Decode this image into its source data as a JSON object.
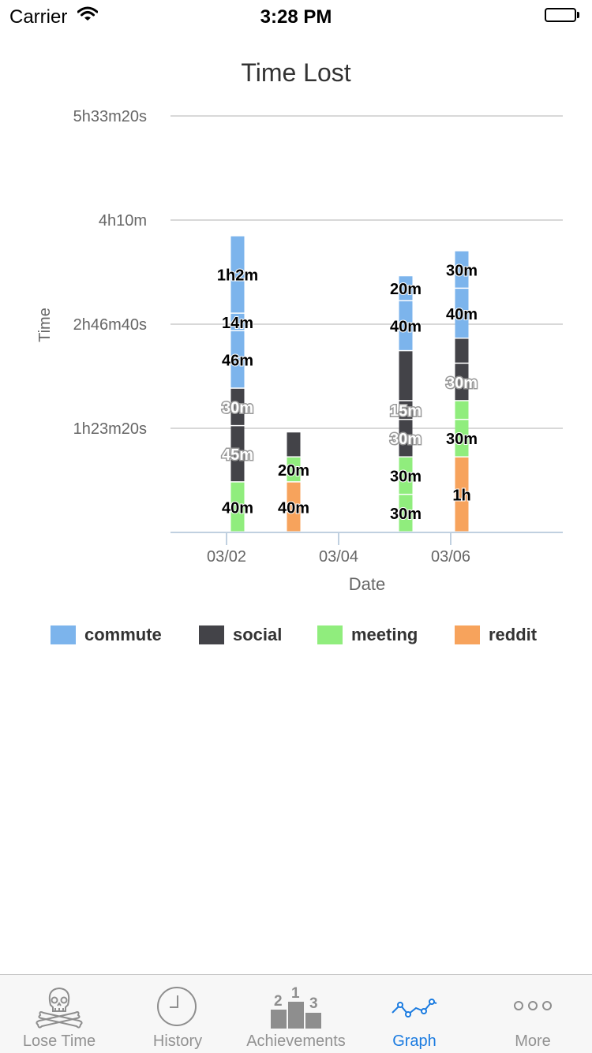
{
  "status_bar": {
    "carrier": "Carrier",
    "time": "3:28 PM"
  },
  "chart_data": {
    "type": "bar",
    "stacked": true,
    "title": "Time Lost",
    "xlabel": "Date",
    "ylabel": "Time",
    "ylim": [
      0,
      20000
    ],
    "y_ticks": [
      {
        "value": 5000,
        "label": "1h23m20s"
      },
      {
        "value": 10000,
        "label": "2h46m40s"
      },
      {
        "value": 15000,
        "label": "4h10m"
      },
      {
        "value": 20000,
        "label": "5h33m20s"
      }
    ],
    "x_ticks": [
      {
        "date": "2015-03-02",
        "label": "03/02"
      },
      {
        "date": "2015-03-04",
        "label": "03/04"
      },
      {
        "date": "2015-03-06",
        "label": "03/06"
      }
    ],
    "x_range": [
      "2015-03-01",
      "2015-03-08"
    ],
    "grid": true,
    "legend_position": "bottom",
    "series": [
      {
        "name": "commute",
        "color": "#7cb4ec"
      },
      {
        "name": "social",
        "color": "#434348"
      },
      {
        "name": "meeting",
        "color": "#90ed7d"
      },
      {
        "name": "reddit",
        "color": "#f7a35c"
      }
    ],
    "bars": [
      {
        "date": "2015-03-02",
        "segments": [
          {
            "series": "meeting",
            "value": 2400,
            "label": "40m"
          },
          {
            "series": "social",
            "value": 2700,
            "label": "45m"
          },
          {
            "series": "social",
            "value": 1800,
            "label": "30m"
          },
          {
            "series": "commute",
            "value": 2760,
            "label": "46m"
          },
          {
            "series": "commute",
            "value": 840,
            "label": "14m"
          },
          {
            "series": "commute",
            "value": 3720,
            "label": "1h2m"
          }
        ]
      },
      {
        "date": "2015-03-03",
        "segments": [
          {
            "series": "reddit",
            "value": 2400,
            "label": "40m"
          },
          {
            "series": "meeting",
            "value": 1200,
            "label": "20m"
          },
          {
            "series": "social",
            "value": 1200,
            "label": ""
          }
        ]
      },
      {
        "date": "2015-03-05",
        "segments": [
          {
            "series": "meeting",
            "value": 1800,
            "label": "30m"
          },
          {
            "series": "meeting",
            "value": 1800,
            "label": "30m"
          },
          {
            "series": "social",
            "value": 1800,
            "label": "30m"
          },
          {
            "series": "social",
            "value": 900,
            "label": "15m"
          },
          {
            "series": "social",
            "value": 2400,
            "label": ""
          },
          {
            "series": "commute",
            "value": 2400,
            "label": "40m"
          },
          {
            "series": "commute",
            "value": 1200,
            "label": "20m"
          }
        ]
      },
      {
        "date": "2015-03-06",
        "segments": [
          {
            "series": "reddit",
            "value": 3600,
            "label": "1h"
          },
          {
            "series": "meeting",
            "value": 1800,
            "label": "30m"
          },
          {
            "series": "meeting",
            "value": 900,
            "label": ""
          },
          {
            "series": "social",
            "value": 1800,
            "label": "30m"
          },
          {
            "series": "social",
            "value": 1200,
            "label": ""
          },
          {
            "series": "commute",
            "value": 2400,
            "label": "40m"
          },
          {
            "series": "commute",
            "value": 1800,
            "label": "30m"
          }
        ]
      }
    ]
  },
  "tabs": [
    {
      "label": "Lose Time",
      "icon": "skull-crossbones-icon",
      "active": false
    },
    {
      "label": "History",
      "icon": "clock-icon",
      "active": false
    },
    {
      "label": "Achievements",
      "icon": "podium-icon",
      "active": false
    },
    {
      "label": "Graph",
      "icon": "line-graph-icon",
      "active": true
    },
    {
      "label": "More",
      "icon": "more-dots-icon",
      "active": false
    }
  ],
  "podium_numbers": [
    "2",
    "1",
    "3"
  ]
}
